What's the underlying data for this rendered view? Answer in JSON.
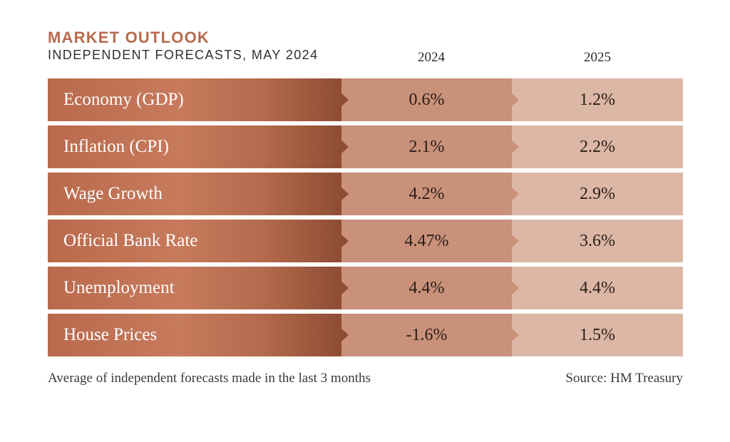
{
  "chart_data": {
    "type": "table",
    "title": "MARKET OUTLOOK",
    "subtitle": "INDEPENDENT FORECASTS, MAY 2024",
    "columns": [
      "2024",
      "2025"
    ],
    "rows": [
      {
        "label": "Economy (GDP)",
        "values": [
          "0.6%",
          "1.2%"
        ]
      },
      {
        "label": "Inflation (CPI)",
        "values": [
          "2.1%",
          "2.2%"
        ]
      },
      {
        "label": "Wage Growth",
        "values": [
          "4.2%",
          "2.9%"
        ]
      },
      {
        "label": "Official Bank Rate",
        "values": [
          "4.47%",
          "3.6%"
        ]
      },
      {
        "label": "Unemployment",
        "values": [
          "4.4%",
          "4.4%"
        ]
      },
      {
        "label": "House Prices",
        "values": [
          "-1.6%",
          "1.5%"
        ]
      }
    ],
    "footnote": "Average of independent forecasts made in the last 3 months",
    "source": "Source: HM Treasury"
  },
  "colors": {
    "accent": "#b86a4c",
    "label_cell": "#c77a5c",
    "col_2024": "#c99179",
    "col_2025": "#dcb7a6"
  }
}
